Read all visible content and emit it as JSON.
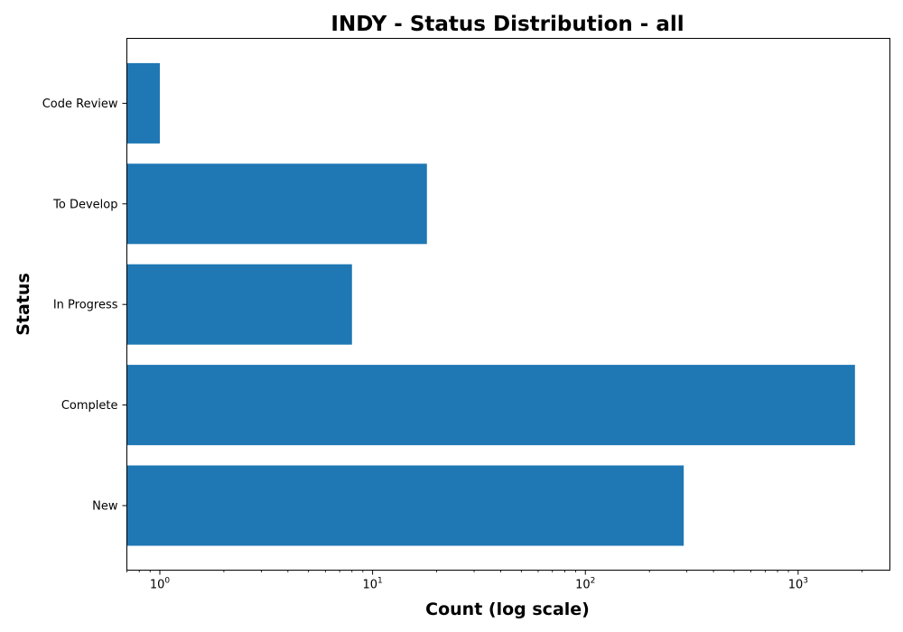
{
  "chart_data": {
    "type": "bar",
    "orientation": "horizontal",
    "title": "INDY - Status Distribution - all",
    "xlabel": "Count (log scale)",
    "ylabel": "Status",
    "x_scale": "log",
    "xlim": [
      0.7,
      2700
    ],
    "x_ticks": [
      {
        "base": "10",
        "exp": "0",
        "value": 1
      },
      {
        "base": "10",
        "exp": "1",
        "value": 10
      },
      {
        "base": "10",
        "exp": "2",
        "value": 100
      },
      {
        "base": "10",
        "exp": "3",
        "value": 1000
      }
    ],
    "categories": [
      "New",
      "Complete",
      "In Progress",
      "To Develop",
      "Code Review"
    ],
    "values": [
      290,
      1850,
      8,
      18,
      1
    ],
    "bar_color": "#1f77b4",
    "grid": false,
    "legend": "none"
  }
}
